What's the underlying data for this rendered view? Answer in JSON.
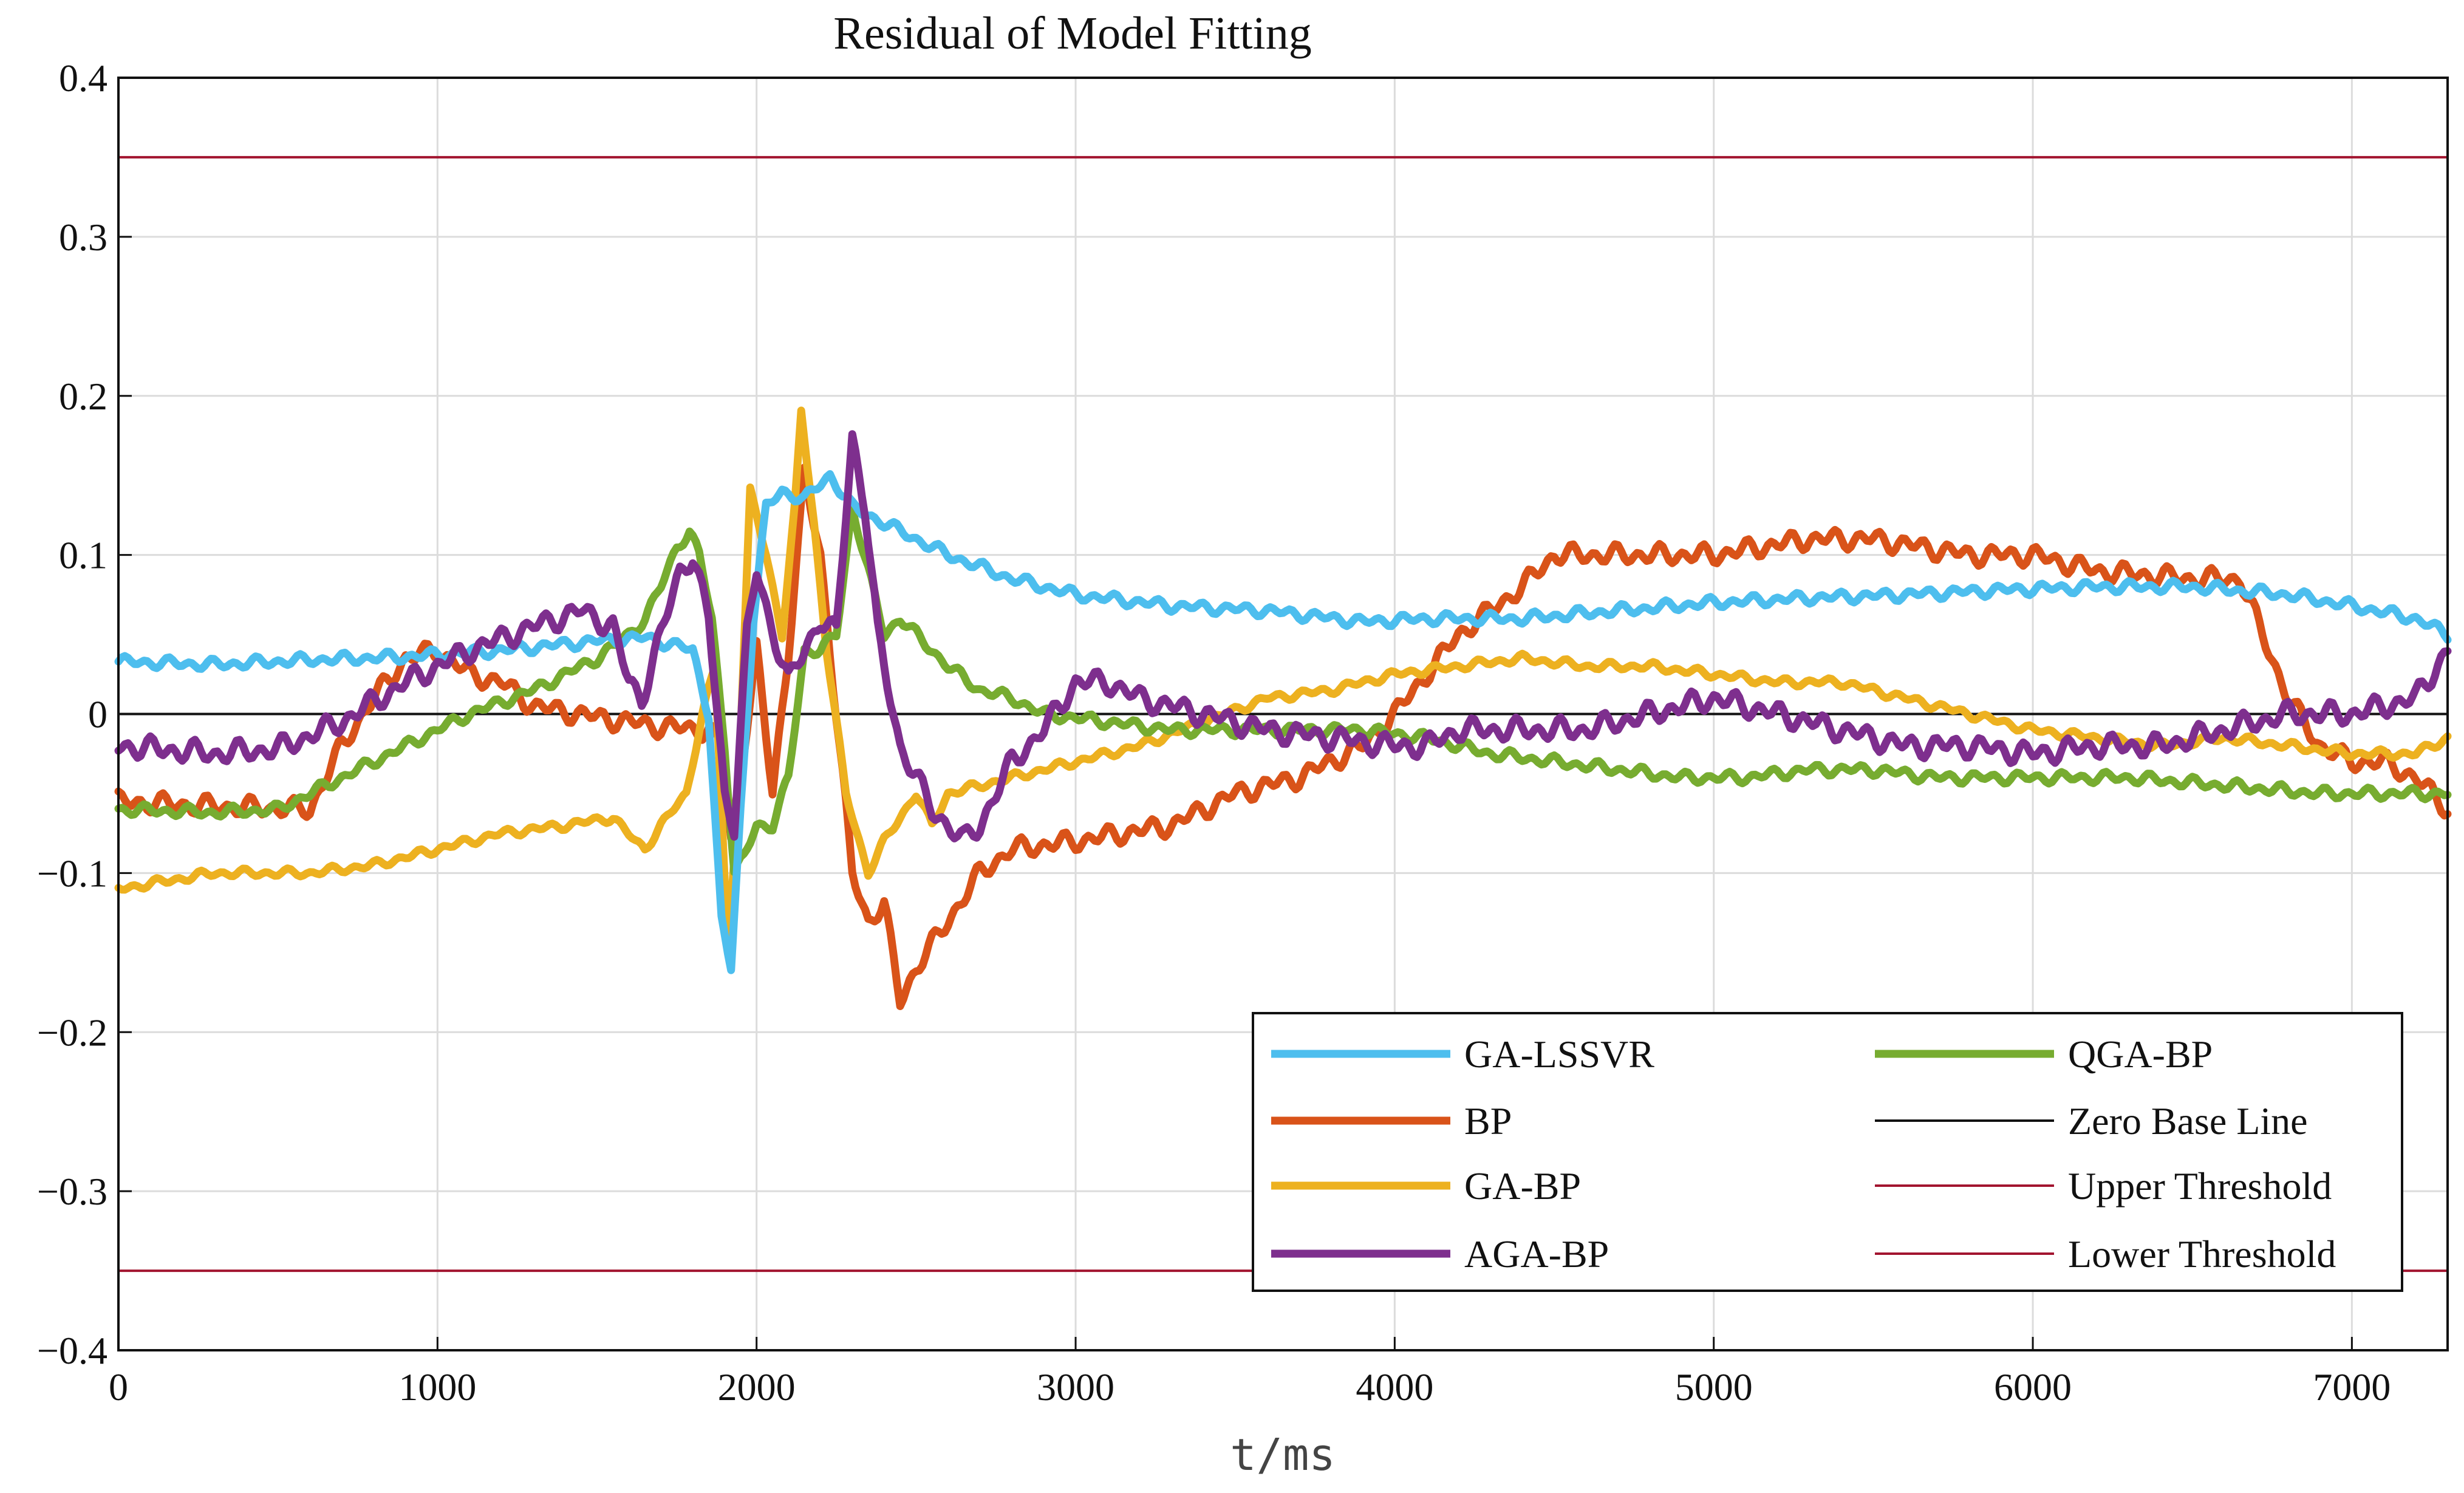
{
  "chart_data": {
    "type": "line",
    "title": "Residual of Model Fitting",
    "xlabel": "t/ms",
    "ylabel": "",
    "xlim": [
      0,
      7300
    ],
    "ylim": [
      -0.4,
      0.4
    ],
    "grid": true,
    "x_ticks": [
      0,
      1000,
      2000,
      3000,
      4000,
      5000,
      6000,
      7000
    ],
    "x_tick_labels": [
      "0",
      "1000",
      "2000",
      "3000",
      "4000",
      "5000",
      "6000",
      "7000"
    ],
    "y_ticks": [
      -0.4,
      -0.3,
      -0.2,
      -0.1,
      0,
      0.1,
      0.2,
      0.3,
      0.4
    ],
    "y_tick_labels": [
      "−0.4",
      "−0.3",
      "−0.2",
      "−0.1",
      "0",
      "0.1",
      "0.2",
      "0.3",
      "0.4"
    ],
    "legend_position": "bottom-right",
    "series": [
      {
        "name": "GA-LSSVR",
        "color": "#4DBEEE",
        "width": "thick",
        "noise": 0.004,
        "points": [
          [
            0,
            0.033
          ],
          [
            300,
            0.031
          ],
          [
            600,
            0.034
          ],
          [
            900,
            0.036
          ],
          [
            1200,
            0.04
          ],
          [
            1500,
            0.046
          ],
          [
            1650,
            0.048
          ],
          [
            1750,
            0.043
          ],
          [
            1800,
            0.04
          ],
          [
            1850,
            0.0
          ],
          [
            1890,
            -0.13
          ],
          [
            1920,
            -0.16
          ],
          [
            1950,
            -0.06
          ],
          [
            1990,
            0.06
          ],
          [
            2030,
            0.13
          ],
          [
            2080,
            0.14
          ],
          [
            2150,
            0.135
          ],
          [
            2230,
            0.15
          ],
          [
            2300,
            0.13
          ],
          [
            2400,
            0.12
          ],
          [
            2500,
            0.11
          ],
          [
            2600,
            0.1
          ],
          [
            2800,
            0.085
          ],
          [
            3000,
            0.075
          ],
          [
            3300,
            0.068
          ],
          [
            3600,
            0.065
          ],
          [
            3900,
            0.058
          ],
          [
            4100,
            0.06
          ],
          [
            4400,
            0.06
          ],
          [
            4700,
            0.065
          ],
          [
            5000,
            0.07
          ],
          [
            5300,
            0.073
          ],
          [
            5600,
            0.075
          ],
          [
            5900,
            0.078
          ],
          [
            6200,
            0.08
          ],
          [
            6500,
            0.08
          ],
          [
            6800,
            0.075
          ],
          [
            7000,
            0.068
          ],
          [
            7200,
            0.06
          ],
          [
            7300,
            0.05
          ]
        ]
      },
      {
        "name": "BP",
        "color": "#D95319",
        "width": "thick",
        "noise": 0.007,
        "points": [
          [
            0,
            -0.055
          ],
          [
            300,
            -0.058
          ],
          [
            600,
            -0.06
          ],
          [
            700,
            -0.02
          ],
          [
            800,
            0.01
          ],
          [
            900,
            0.035
          ],
          [
            1000,
            0.04
          ],
          [
            1100,
            0.025
          ],
          [
            1200,
            0.02
          ],
          [
            1300,
            0.005
          ],
          [
            1500,
            -0.002
          ],
          [
            1700,
            -0.008
          ],
          [
            1850,
            -0.01
          ],
          [
            1890,
            -0.02
          ],
          [
            1920,
            -0.08
          ],
          [
            1960,
            -0.02
          ],
          [
            2000,
            0.04
          ],
          [
            2050,
            -0.05
          ],
          [
            2100,
            0.04
          ],
          [
            2150,
            0.15
          ],
          [
            2200,
            0.1
          ],
          [
            2250,
            0.0
          ],
          [
            2300,
            -0.1
          ],
          [
            2350,
            -0.13
          ],
          [
            2400,
            -0.12
          ],
          [
            2450,
            -0.18
          ],
          [
            2500,
            -0.16
          ],
          [
            2600,
            -0.13
          ],
          [
            2700,
            -0.1
          ],
          [
            2800,
            -0.085
          ],
          [
            3000,
            -0.08
          ],
          [
            3300,
            -0.07
          ],
          [
            3500,
            -0.05
          ],
          [
            3700,
            -0.04
          ],
          [
            3900,
            -0.02
          ],
          [
            4000,
            0.0
          ],
          [
            4200,
            0.05
          ],
          [
            4400,
            0.08
          ],
          [
            4500,
            0.1
          ],
          [
            4700,
            0.1
          ],
          [
            5000,
            0.1
          ],
          [
            5300,
            0.11
          ],
          [
            5500,
            0.11
          ],
          [
            5800,
            0.1
          ],
          [
            6000,
            0.1
          ],
          [
            6200,
            0.09
          ],
          [
            6500,
            0.085
          ],
          [
            6650,
            0.085
          ],
          [
            6700,
            0.06
          ],
          [
            6800,
            0.01
          ],
          [
            6900,
            -0.02
          ],
          [
            7000,
            -0.03
          ],
          [
            7100,
            -0.03
          ],
          [
            7200,
            -0.04
          ],
          [
            7300,
            -0.06
          ]
        ]
      },
      {
        "name": "GA-BP",
        "color": "#EDB120",
        "width": "thick",
        "noise": 0.003,
        "points": [
          [
            0,
            -0.11
          ],
          [
            300,
            -0.1
          ],
          [
            600,
            -0.1
          ],
          [
            800,
            -0.095
          ],
          [
            1000,
            -0.085
          ],
          [
            1200,
            -0.075
          ],
          [
            1400,
            -0.07
          ],
          [
            1550,
            -0.065
          ],
          [
            1620,
            -0.08
          ],
          [
            1650,
            -0.085
          ],
          [
            1700,
            -0.07
          ],
          [
            1780,
            -0.05
          ],
          [
            1830,
            0.0
          ],
          [
            1870,
            0.03
          ],
          [
            1910,
            -0.15
          ],
          [
            1940,
            -0.06
          ],
          [
            1980,
            0.14
          ],
          [
            2030,
            0.1
          ],
          [
            2080,
            0.05
          ],
          [
            2120,
            0.13
          ],
          [
            2140,
            0.19
          ],
          [
            2180,
            0.12
          ],
          [
            2220,
            0.04
          ],
          [
            2280,
            -0.05
          ],
          [
            2350,
            -0.1
          ],
          [
            2400,
            -0.08
          ],
          [
            2500,
            -0.05
          ],
          [
            2550,
            -0.07
          ],
          [
            2600,
            -0.05
          ],
          [
            2800,
            -0.04
          ],
          [
            3000,
            -0.03
          ],
          [
            3200,
            -0.02
          ],
          [
            3400,
            -0.005
          ],
          [
            3600,
            0.01
          ],
          [
            3800,
            0.015
          ],
          [
            4000,
            0.025
          ],
          [
            4200,
            0.03
          ],
          [
            4400,
            0.035
          ],
          [
            4600,
            0.03
          ],
          [
            4800,
            0.03
          ],
          [
            5000,
            0.025
          ],
          [
            5200,
            0.02
          ],
          [
            5400,
            0.02
          ],
          [
            5600,
            0.01
          ],
          [
            5800,
            0.0
          ],
          [
            6000,
            -0.01
          ],
          [
            6200,
            -0.015
          ],
          [
            6400,
            -0.02
          ],
          [
            6600,
            -0.015
          ],
          [
            6800,
            -0.02
          ],
          [
            7000,
            -0.025
          ],
          [
            7200,
            -0.025
          ],
          [
            7300,
            -0.015
          ]
        ]
      },
      {
        "name": "AGA-BP",
        "color": "#7E2F8E",
        "width": "thick",
        "noise": 0.008,
        "points": [
          [
            0,
            -0.02
          ],
          [
            300,
            -0.025
          ],
          [
            500,
            -0.022
          ],
          [
            700,
            -0.005
          ],
          [
            900,
            0.02
          ],
          [
            1100,
            0.04
          ],
          [
            1300,
            0.055
          ],
          [
            1450,
            0.065
          ],
          [
            1550,
            0.055
          ],
          [
            1600,
            0.02
          ],
          [
            1640,
            0.01
          ],
          [
            1700,
            0.05
          ],
          [
            1760,
            0.09
          ],
          [
            1800,
            0.1
          ],
          [
            1850,
            0.06
          ],
          [
            1900,
            -0.05
          ],
          [
            1930,
            -0.07
          ],
          [
            1970,
            0.05
          ],
          [
            2000,
            0.09
          ],
          [
            2040,
            0.06
          ],
          [
            2100,
            0.02
          ],
          [
            2150,
            0.04
          ],
          [
            2200,
            0.06
          ],
          [
            2250,
            0.05
          ],
          [
            2300,
            0.175
          ],
          [
            2340,
            0.13
          ],
          [
            2380,
            0.05
          ],
          [
            2450,
            -0.02
          ],
          [
            2500,
            -0.04
          ],
          [
            2550,
            -0.06
          ],
          [
            2650,
            -0.08
          ],
          [
            2700,
            -0.07
          ],
          [
            2750,
            -0.05
          ],
          [
            2800,
            -0.03
          ],
          [
            2900,
            -0.01
          ],
          [
            3000,
            0.02
          ],
          [
            3100,
            0.02
          ],
          [
            3200,
            0.01
          ],
          [
            3400,
            0.0
          ],
          [
            3600,
            -0.01
          ],
          [
            3800,
            -0.015
          ],
          [
            4000,
            -0.02
          ],
          [
            4100,
            -0.02
          ],
          [
            4200,
            -0.01
          ],
          [
            4400,
            -0.01
          ],
          [
            4600,
            -0.01
          ],
          [
            4800,
            0.0
          ],
          [
            5000,
            0.01
          ],
          [
            5200,
            0.0
          ],
          [
            5400,
            -0.01
          ],
          [
            5600,
            -0.02
          ],
          [
            5800,
            -0.02
          ],
          [
            6000,
            -0.025
          ],
          [
            6200,
            -0.02
          ],
          [
            6400,
            -0.02
          ],
          [
            6600,
            -0.01
          ],
          [
            6800,
            0.0
          ],
          [
            7000,
            0.0
          ],
          [
            7200,
            0.01
          ],
          [
            7300,
            0.04
          ]
        ]
      },
      {
        "name": "QGA-BP",
        "color": "#77AC30",
        "width": "thick",
        "noise": 0.004,
        "points": [
          [
            0,
            -0.06
          ],
          [
            300,
            -0.062
          ],
          [
            500,
            -0.06
          ],
          [
            700,
            -0.04
          ],
          [
            900,
            -0.02
          ],
          [
            1100,
            0.0
          ],
          [
            1300,
            0.015
          ],
          [
            1500,
            0.035
          ],
          [
            1600,
            0.05
          ],
          [
            1650,
            0.06
          ],
          [
            1700,
            0.08
          ],
          [
            1750,
            0.105
          ],
          [
            1790,
            0.115
          ],
          [
            1820,
            0.1
          ],
          [
            1860,
            0.06
          ],
          [
            1900,
            -0.02
          ],
          [
            1930,
            -0.1
          ],
          [
            1960,
            -0.09
          ],
          [
            2000,
            -0.07
          ],
          [
            2050,
            -0.07
          ],
          [
            2100,
            -0.04
          ],
          [
            2150,
            0.04
          ],
          [
            2200,
            0.04
          ],
          [
            2250,
            0.05
          ],
          [
            2300,
            0.13
          ],
          [
            2350,
            0.09
          ],
          [
            2400,
            0.05
          ],
          [
            2450,
            0.06
          ],
          [
            2500,
            0.05
          ],
          [
            2600,
            0.03
          ],
          [
            2700,
            0.015
          ],
          [
            2800,
            0.01
          ],
          [
            2900,
            0.0
          ],
          [
            3100,
            -0.005
          ],
          [
            3300,
            -0.01
          ],
          [
            3500,
            -0.01
          ],
          [
            3700,
            -0.01
          ],
          [
            3900,
            -0.01
          ],
          [
            4100,
            -0.015
          ],
          [
            4300,
            -0.025
          ],
          [
            4500,
            -0.03
          ],
          [
            4700,
            -0.035
          ],
          [
            4900,
            -0.04
          ],
          [
            5100,
            -0.04
          ],
          [
            5300,
            -0.035
          ],
          [
            5500,
            -0.035
          ],
          [
            5700,
            -0.04
          ],
          [
            6000,
            -0.04
          ],
          [
            6300,
            -0.04
          ],
          [
            6600,
            -0.045
          ],
          [
            6900,
            -0.05
          ],
          [
            7100,
            -0.05
          ],
          [
            7300,
            -0.05
          ]
        ]
      },
      {
        "name": "Zero Base Line",
        "color": "#111111",
        "width": "thin",
        "noise": 0,
        "points": [
          [
            0,
            0
          ],
          [
            7300,
            0
          ]
        ]
      },
      {
        "name": "Upper Threshold",
        "color": "#A2142F",
        "width": "thin",
        "noise": 0,
        "points": [
          [
            0,
            0.35
          ],
          [
            7300,
            0.35
          ]
        ]
      },
      {
        "name": "Lower Threshold",
        "color": "#A2142F",
        "width": "thin",
        "noise": 0,
        "points": [
          [
            0,
            -0.35
          ],
          [
            7300,
            -0.35
          ]
        ]
      }
    ]
  }
}
